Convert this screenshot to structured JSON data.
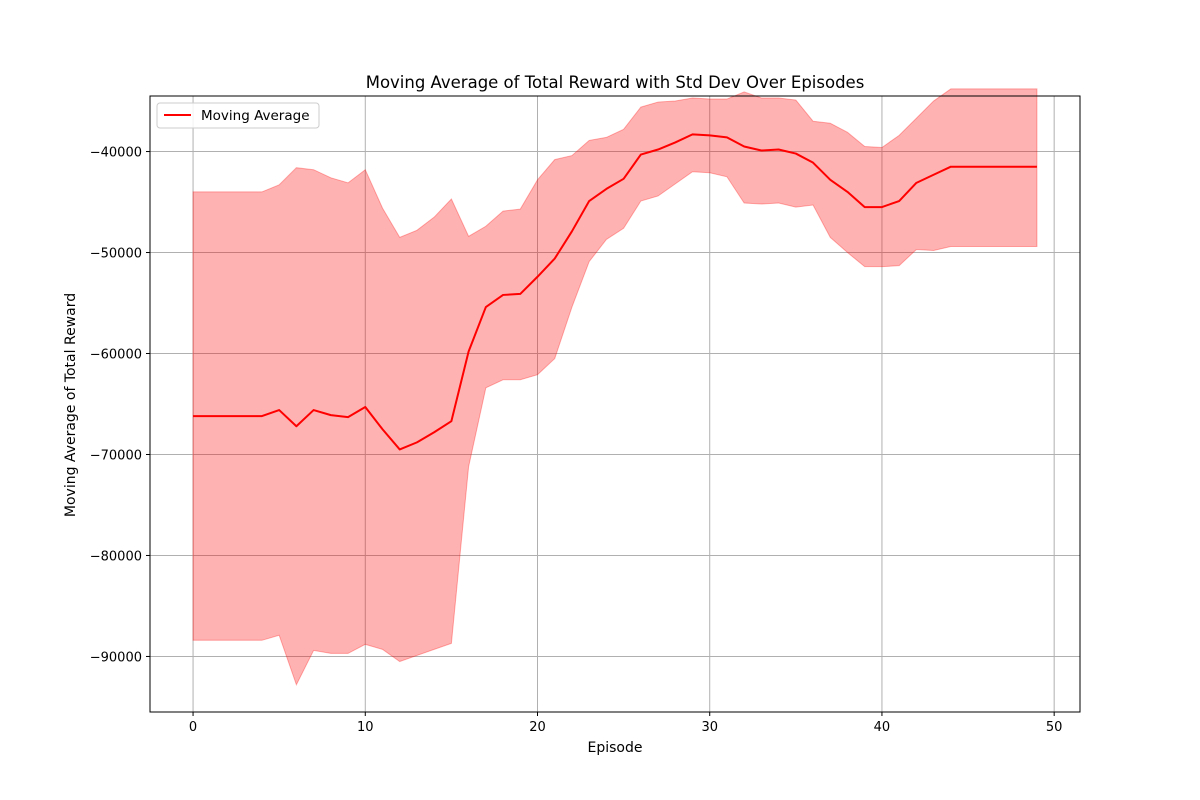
{
  "chart_data": {
    "type": "line",
    "title": "Moving Average of Total Reward with Std Dev Over Episodes",
    "xlabel": "Episode",
    "ylabel": "Moving Average of Total Reward",
    "xlim": [
      -2.5,
      51.5
    ],
    "ylim": [
      -95500,
      -34500
    ],
    "xticks": [
      0,
      10,
      20,
      30,
      40,
      50
    ],
    "yticks": [
      -90000,
      -80000,
      -70000,
      -60000,
      -50000,
      -40000
    ],
    "xtick_labels": [
      "0",
      "10",
      "20",
      "30",
      "40",
      "50"
    ],
    "ytick_labels": [
      "−90000",
      "−80000",
      "−70000",
      "−60000",
      "−50000",
      "−40000"
    ],
    "grid": true,
    "legend": {
      "position": "top-left",
      "entries": [
        "Moving Average"
      ]
    },
    "colors": {
      "line": "#ff0000",
      "band": "#ff0000"
    },
    "x": [
      0,
      1,
      2,
      3,
      4,
      5,
      6,
      7,
      8,
      9,
      10,
      11,
      12,
      13,
      14,
      15,
      16,
      17,
      18,
      19,
      20,
      21,
      22,
      23,
      24,
      25,
      26,
      27,
      28,
      29,
      30,
      31,
      32,
      33,
      34,
      35,
      36,
      37,
      38,
      39,
      40,
      41,
      42,
      43,
      44,
      45,
      46,
      47,
      48,
      49
    ],
    "series": [
      {
        "name": "Moving Average",
        "values": [
          -66200,
          -66200,
          -66200,
          -66200,
          -66200,
          -65600,
          -67200,
          -65600,
          -66100,
          -66300,
          -65300,
          -67500,
          -69500,
          -68800,
          -67800,
          -66700,
          -59800,
          -55400,
          -54200,
          -54100,
          -52400,
          -50600,
          -47900,
          -44900,
          -43700,
          -42700,
          -40300,
          -39800,
          -39100,
          -38300,
          -38400,
          -38600,
          -39500,
          -39900,
          -39800,
          -40200,
          -41100,
          -42800,
          -44000,
          -45500,
          -45500,
          -44900,
          -43100,
          -42300,
          -41500,
          -41500,
          -41500,
          -41500,
          -41500,
          -41500
        ]
      },
      {
        "name": "Std Dev Upper",
        "values": [
          -44000,
          -44000,
          -44000,
          -44000,
          -44000,
          -43300,
          -41600,
          -41800,
          -42600,
          -43100,
          -41800,
          -45600,
          -48500,
          -47800,
          -46500,
          -44700,
          -48400,
          -47400,
          -45900,
          -45700,
          -42800,
          -40800,
          -40400,
          -38900,
          -38600,
          -37800,
          -35600,
          -35100,
          -35000,
          -34700,
          -34800,
          -34800,
          -34100,
          -34700,
          -34700,
          -34900,
          -37000,
          -37200,
          -38100,
          -39500,
          -39600,
          -38400,
          -36700,
          -35000,
          -33800,
          -33800,
          -33800,
          -33800,
          -33800,
          -33800
        ]
      },
      {
        "name": "Std Dev Lower",
        "values": [
          -88400,
          -88400,
          -88400,
          -88400,
          -88400,
          -87900,
          -92800,
          -89400,
          -89700,
          -89700,
          -88800,
          -89300,
          -90500,
          -89900,
          -89300,
          -88700,
          -71200,
          -63400,
          -62600,
          -62600,
          -62100,
          -60500,
          -55400,
          -50900,
          -48700,
          -47600,
          -44900,
          -44400,
          -43200,
          -42000,
          -42100,
          -42500,
          -45100,
          -45200,
          -45100,
          -45500,
          -45300,
          -48500,
          -50000,
          -51400,
          -51400,
          -51300,
          -49700,
          -49800,
          -49400,
          -49400,
          -49400,
          -49400,
          -49400,
          -49400
        ]
      }
    ]
  }
}
